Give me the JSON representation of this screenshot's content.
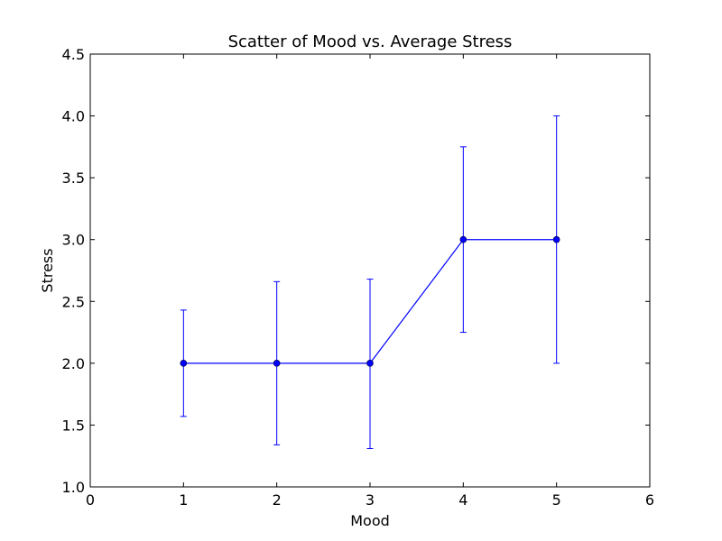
{
  "chart_data": {
    "type": "line",
    "title": "Scatter of Mood vs. Average Stress",
    "xlabel": "Mood",
    "ylabel": "Stress",
    "xlim": [
      0,
      6
    ],
    "ylim": [
      1.0,
      4.5
    ],
    "x_ticks": [
      "0",
      "1",
      "2",
      "3",
      "4",
      "5",
      "6"
    ],
    "y_ticks": [
      "1.0",
      "1.5",
      "2.0",
      "2.5",
      "3.0",
      "3.5",
      "4.0",
      "4.5"
    ],
    "grid": false,
    "color": "#0000ff",
    "series": [
      {
        "x": [
          1,
          2,
          3,
          4,
          5
        ],
        "y": [
          2.0,
          2.0,
          2.0,
          3.0,
          3.0
        ],
        "yerr_low": [
          1.57,
          1.34,
          1.31,
          2.25,
          2.0
        ],
        "yerr_high": [
          2.43,
          2.66,
          2.68,
          3.75,
          4.0
        ]
      }
    ]
  }
}
